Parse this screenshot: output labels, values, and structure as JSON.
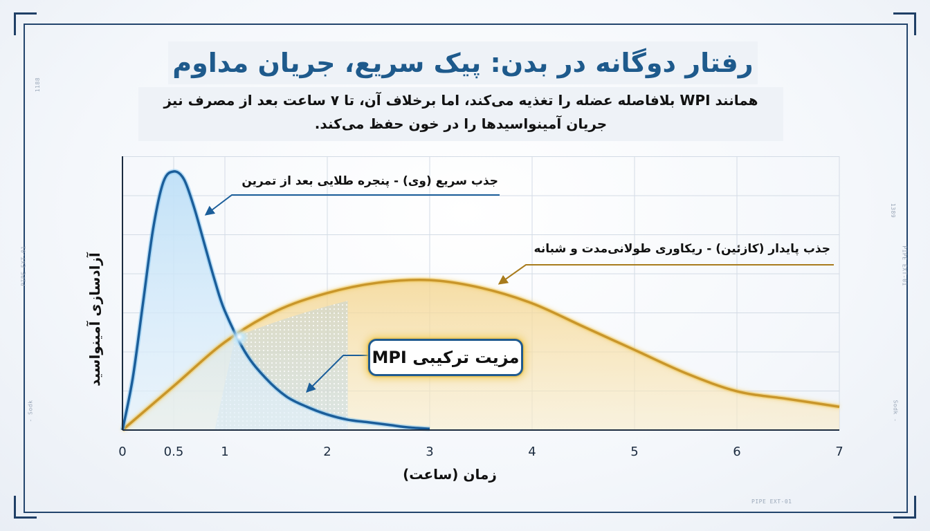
{
  "title": "رفتار دوگانه در بدن: پیک سریع، جریان مداوم",
  "subtitle_line1": "همانند WPI بلافاصله عضله را تغذیه می‌کند، اما برخلاف آن، تا ۷ ساعت بعد از مصرف نیز",
  "subtitle_line2": "جریان آمینواسیدها را در خون حفظ می‌کند.",
  "frame_labels": {
    "left_top": "1188",
    "left_mid": "PIPE EXT-01",
    "left_bottom": "- Sodk",
    "right_top": "1389",
    "right_mid": "PIPE EXT-01",
    "right_bottom": "Sodk -",
    "bottom": "PIPE EXT-01"
  },
  "annotations": {
    "fast": "جذب سریع (وی) - پنجره طلایی بعد از تمرین",
    "sustained": "جذب پایدار (کازئین) - ریکاوری طولانی‌مدت و شبانه",
    "combo": "مزیت ترکیبی MPI"
  },
  "colors": {
    "fast_series": "#1b5e9a",
    "sustained_series": "#c9962a",
    "title": "#1e5a8c"
  },
  "chart_data": {
    "type": "area",
    "xlabel": "زمان (ساعت)",
    "ylabel": "آزادسازی آمینواسید",
    "xticks": [
      "0",
      "0.5",
      "1",
      "2",
      "3",
      "4",
      "5",
      "6",
      "7"
    ],
    "xlim": [
      0,
      7
    ],
    "ylim": [
      0,
      100
    ],
    "grid": true,
    "series": [
      {
        "x": [
          0,
          0.1,
          0.2,
          0.3,
          0.4,
          0.5,
          0.6,
          0.7,
          0.8,
          0.9,
          1.0,
          1.2,
          1.4,
          1.6,
          1.8,
          2.0,
          2.2,
          2.4,
          2.6,
          2.8,
          3.0
        ],
        "y": [
          0,
          20,
          49,
          78,
          96,
          100,
          97,
          86,
          72,
          58,
          46,
          30,
          20,
          13,
          9,
          6,
          4,
          3,
          2,
          1,
          0.5
        ]
      },
      {
        "x": [
          0,
          0.5,
          1.0,
          1.5,
          2.0,
          2.5,
          3.0,
          3.5,
          4.0,
          4.5,
          5.0,
          5.5,
          6.0,
          6.5,
          7.0
        ],
        "y": [
          0,
          17,
          34,
          46,
          53,
          57,
          58,
          55,
          49,
          40,
          31,
          22,
          15,
          12,
          9
        ]
      }
    ]
  }
}
